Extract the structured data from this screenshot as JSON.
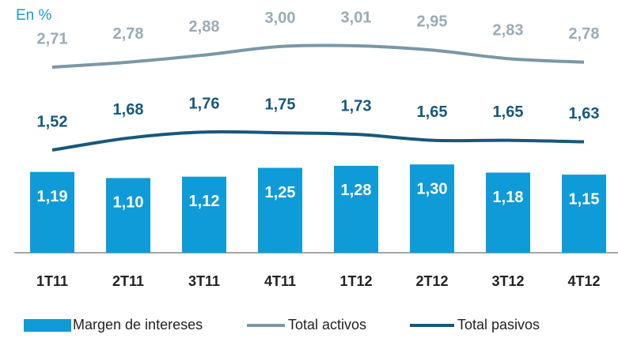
{
  "chart_data": {
    "type": "bar",
    "title": "En %",
    "legend": "bottom",
    "categories": [
      "1T11",
      "2T11",
      "3T11",
      "4T11",
      "1T12",
      "2T12",
      "3T12",
      "4T12"
    ],
    "series": [
      {
        "name": "Margen de intereses",
        "type": "bar",
        "color": "#0f9bd8",
        "label_color": "#ffffff",
        "values": [
          1.19,
          1.1,
          1.12,
          1.25,
          1.28,
          1.3,
          1.18,
          1.15
        ],
        "value_labels": [
          "1,19",
          "1,10",
          "1,12",
          "1,25",
          "1,28",
          "1,30",
          "1,18",
          "1,15"
        ]
      },
      {
        "name": "Total activos",
        "type": "line",
        "color": "#7b97a7",
        "label_color": "#9aabb6",
        "values": [
          2.71,
          2.78,
          2.88,
          3.0,
          3.01,
          2.95,
          2.83,
          2.78
        ],
        "value_labels": [
          "2,71",
          "2,78",
          "2,88",
          "3,00",
          "3,01",
          "2,95",
          "2,83",
          "2,78"
        ]
      },
      {
        "name": "Total pasivos",
        "type": "line",
        "color": "#17587a",
        "label_color": "#17587a",
        "values": [
          1.52,
          1.68,
          1.76,
          1.75,
          1.73,
          1.65,
          1.65,
          1.63
        ],
        "value_labels": [
          "1,52",
          "1,68",
          "1,76",
          "1,75",
          "1,73",
          "1,65",
          "1,65",
          "1,63"
        ]
      }
    ]
  }
}
